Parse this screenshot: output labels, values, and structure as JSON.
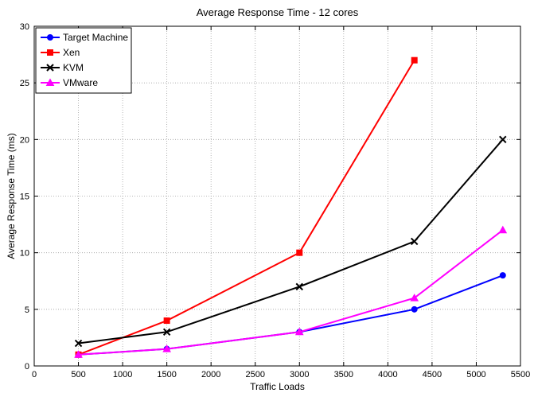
{
  "chart_data": {
    "type": "line",
    "title": "Average Response Time - 12 cores",
    "xlabel": "Traffic Loads",
    "ylabel": "Average Response Time (ms)",
    "xlim": [
      0,
      5500
    ],
    "ylim": [
      0,
      30
    ],
    "xticks": [
      0,
      500,
      1000,
      1500,
      2000,
      2500,
      3000,
      3500,
      4000,
      4500,
      5000,
      5500
    ],
    "yticks": [
      0,
      5,
      10,
      15,
      20,
      25,
      30
    ],
    "grid": true,
    "legend_position": "top-left",
    "series": [
      {
        "name": "Target Machine",
        "color": "#0000ff",
        "marker": "circle",
        "x": [
          500,
          1500,
          3000,
          4300,
          5300
        ],
        "y": [
          1,
          1.5,
          3,
          5,
          8
        ]
      },
      {
        "name": "Xen",
        "color": "#ff0000",
        "marker": "square",
        "x": [
          500,
          1500,
          3000,
          4300
        ],
        "y": [
          1,
          4,
          10,
          27
        ]
      },
      {
        "name": "KVM",
        "color": "#000000",
        "marker": "x",
        "x": [
          500,
          1500,
          3000,
          4300,
          5300
        ],
        "y": [
          2,
          3,
          7,
          11,
          20
        ]
      },
      {
        "name": "VMware",
        "color": "#ff00ff",
        "marker": "triangle",
        "x": [
          500,
          1500,
          3000,
          4300,
          5300
        ],
        "y": [
          1,
          1.5,
          3,
          6,
          12
        ]
      }
    ]
  }
}
